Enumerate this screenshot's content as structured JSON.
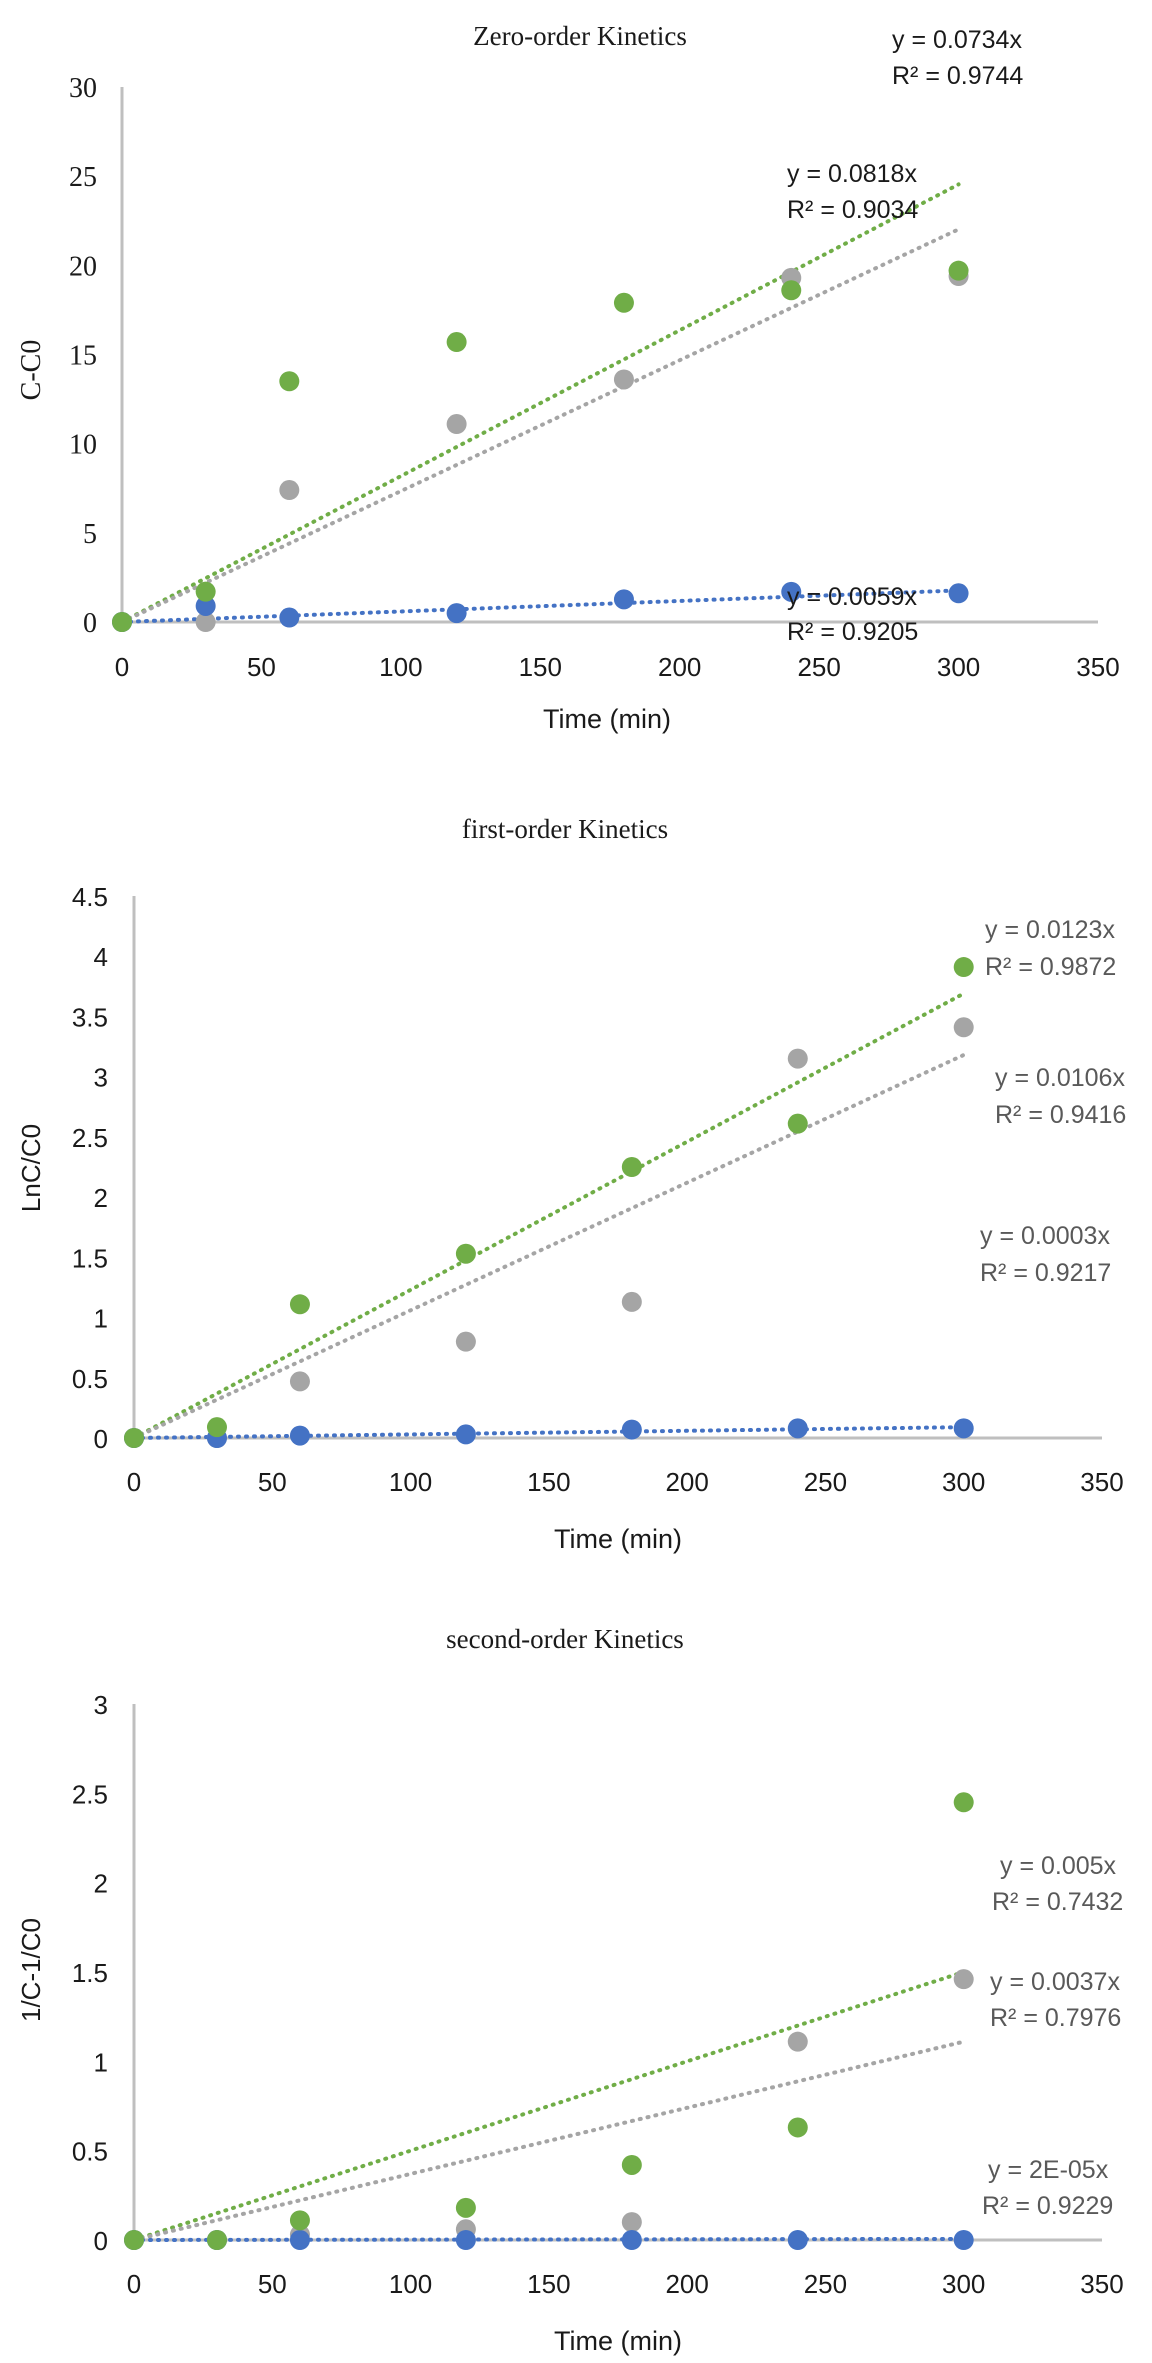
{
  "colors": {
    "green": "#70AD47",
    "gray": "#A5A5A5",
    "blue": "#4472C4",
    "axis": "#BFBFBF"
  },
  "chart_data": [
    {
      "type": "scatter",
      "title": "Zero-order Kinetics",
      "xlabel": "Time (min)",
      "ylabel": "C-C0",
      "xlim": [
        0,
        350
      ],
      "ylim": [
        0,
        30
      ],
      "xticks": [
        0,
        50,
        100,
        150,
        200,
        250,
        300,
        350
      ],
      "yticks": [
        0,
        5,
        10,
        15,
        20,
        25,
        30
      ],
      "ytick_labels": [
        "0",
        "5",
        "10",
        "15",
        "20",
        "25",
        "30"
      ],
      "grid": false,
      "legend": "none",
      "x": [
        0,
        30,
        60,
        120,
        180,
        240,
        300
      ],
      "series": [
        {
          "name": "green",
          "color": "#70AD47",
          "values": [
            0,
            1.7,
            13.5,
            15.7,
            17.9,
            18.6,
            19.7
          ],
          "trendline": {
            "slope": 0.0818,
            "equation": "y = 0.0818x",
            "r2": "R² = 0.9034"
          }
        },
        {
          "name": "gray",
          "color": "#A5A5A5",
          "values": [
            0,
            0,
            7.4,
            11.1,
            13.6,
            19.3,
            19.4
          ],
          "trendline": {
            "slope": 0.0734,
            "equation": "y = 0.0734x",
            "r2": "R² = 0.9744"
          }
        },
        {
          "name": "blue",
          "color": "#4472C4",
          "values": [
            0,
            0.9,
            0.25,
            0.5,
            1.27,
            1.69,
            1.61
          ],
          "trendline": {
            "slope": 0.0059,
            "equation": "y = 0.0059x",
            "r2": "R² = 0.9205"
          }
        }
      ]
    },
    {
      "type": "scatter",
      "title": "first-order Kinetics",
      "xlabel": "Time (min)",
      "ylabel": "LnC/C0",
      "xlim": [
        0,
        350
      ],
      "ylim": [
        0,
        4.5
      ],
      "xticks": [
        0,
        50,
        100,
        150,
        200,
        250,
        300,
        350
      ],
      "yticks": [
        0,
        0.5,
        1,
        1.5,
        2,
        2.5,
        3,
        3.5,
        4,
        4.5
      ],
      "ytick_labels": [
        "0",
        "0.5",
        "1",
        "1.5",
        "2",
        "2.5",
        "3",
        "3.5",
        "4",
        "4.5"
      ],
      "grid": false,
      "legend": "none",
      "x": [
        0,
        30,
        60,
        120,
        180,
        240,
        300
      ],
      "series": [
        {
          "name": "green",
          "color": "#70AD47",
          "values": [
            0,
            0.09,
            1.11,
            1.53,
            2.25,
            2.61,
            3.91
          ],
          "trendline": {
            "slope": 0.0123,
            "equation": "y = 0.0123x",
            "r2": "R² = 0.9872"
          }
        },
        {
          "name": "gray",
          "color": "#A5A5A5",
          "values": [
            0,
            0,
            0.47,
            0.8,
            1.13,
            3.15,
            3.41
          ],
          "trendline": {
            "slope": 0.0106,
            "equation": "y = 0.0106x",
            "r2": "R² = 0.9416"
          }
        },
        {
          "name": "blue",
          "color": "#4472C4",
          "values": [
            0,
            0.0,
            0.02,
            0.03,
            0.07,
            0.08,
            0.08
          ],
          "trendline": {
            "slope": 0.0003,
            "equation": "y = 0.0003x",
            "r2": "R² = 0.9217"
          }
        }
      ]
    },
    {
      "type": "scatter",
      "title": "second-order Kinetics",
      "xlabel": "Time (min)",
      "ylabel": "1/C-1/C0",
      "xlim": [
        0,
        350
      ],
      "ylim": [
        0,
        3
      ],
      "xticks": [
        0,
        50,
        100,
        150,
        200,
        250,
        300,
        350
      ],
      "yticks": [
        0,
        0.5,
        1,
        1.5,
        2,
        2.5,
        3
      ],
      "ytick_labels": [
        "0",
        "0.5",
        "1",
        "1.5",
        "2",
        "2.5",
        "3"
      ],
      "grid": false,
      "legend": "none",
      "x": [
        0,
        30,
        60,
        120,
        180,
        240,
        300
      ],
      "series": [
        {
          "name": "green",
          "color": "#70AD47",
          "values": [
            0,
            0,
            0.11,
            0.18,
            0.42,
            0.63,
            2.45
          ],
          "trendline": {
            "slope": 0.005,
            "equation": "y = 0.005x",
            "r2": "R² = 0.7432"
          }
        },
        {
          "name": "gray",
          "color": "#A5A5A5",
          "values": [
            0,
            0,
            0.03,
            0.06,
            0.1,
            1.11,
            1.46
          ],
          "trendline": {
            "slope": 0.0037,
            "equation": "y = 0.0037x",
            "r2": "R² = 0.7976"
          }
        },
        {
          "name": "blue",
          "color": "#4472C4",
          "values": [
            0,
            0,
            0,
            0,
            0,
            0,
            0
          ],
          "trendline": {
            "slope": 2e-05,
            "equation": "y = 2E-05x",
            "r2": "R² = 0.9229"
          }
        }
      ]
    }
  ]
}
